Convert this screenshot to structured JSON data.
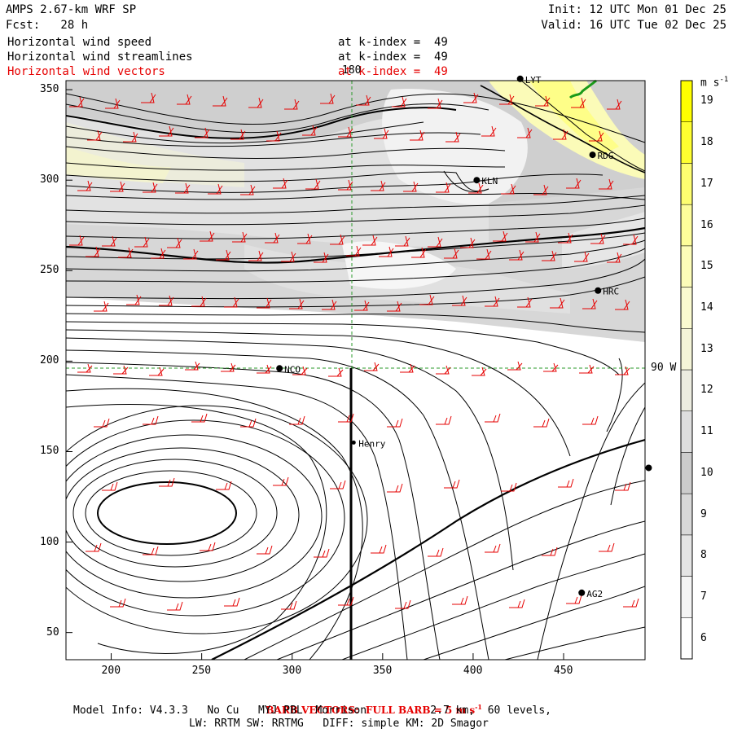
{
  "header": {
    "model": "AMPS 2.67-km WRF SP",
    "forecast": "Fcst:   28 h",
    "init": "Init: 12 UTC Mon 01 Dec 25",
    "valid": "Valid: 16 UTC Tue 02 Dec 25"
  },
  "fields": [
    {
      "name": "Horizontal wind speed",
      "level": "at k-index =  49",
      "color": "#000000"
    },
    {
      "name": "Horizontal wind streamlines",
      "level": "at k-index =  49",
      "color": "#000000"
    },
    {
      "name": "Horizontal wind vectors",
      "level": "at k-index =  49",
      "color": "#e60000"
    }
  ],
  "map": {
    "x_ticks": [
      "200",
      "250",
      "300",
      "350",
      "400",
      "450"
    ],
    "y_ticks": [
      "350",
      "300",
      "250",
      "200",
      "150",
      "100",
      "50"
    ],
    "meridian_label": "180",
    "parallel_label": "90 W",
    "stations": [
      {
        "name": "KLN",
        "x": 402,
        "y": 300
      },
      {
        "name": "RDG",
        "x": 466,
        "y": 314
      },
      {
        "name": "HRC",
        "x": 469,
        "y": 239
      },
      {
        "name": "NCO",
        "x": 293,
        "y": 196
      },
      {
        "name": "Henry",
        "x": 334,
        "y": 155
      },
      {
        "name": "AG2",
        "x": 460,
        "y": 72
      },
      {
        "name": "LYT",
        "x": 426,
        "y": 356
      },
      {
        "name": "",
        "x": 497,
        "y": 141
      }
    ]
  },
  "colorbar": {
    "unit": "m s",
    "unit_exp": "-1",
    "levels": [
      "6",
      "7",
      "8",
      "9",
      "10",
      "11",
      "12",
      "13",
      "14",
      "15",
      "16",
      "17",
      "18",
      "19"
    ],
    "colors": [
      "#ffffff",
      "#f4f4f4",
      "#e4e4e4",
      "#d8d8d8",
      "#cccccc",
      "#dedede",
      "#ecece0",
      "#f4f4d8",
      "#fafad0",
      "#fcfcb8",
      "#fdfd9a",
      "#fefe70",
      "#ffff30",
      "#ffff00"
    ]
  },
  "footer": {
    "barb_note": "BARB VECTORS:  FULL BARB = 5 m s",
    "barb_exp": "-1",
    "line1": "Model Info: V4.3.3   No Cu   MYJ PBL  Morrison          2.7 km,  60 levels,",
    "line2": "LW: RRTM SW: RRTMG   DIFF: simple KM: 2D Smagor"
  },
  "colors": {
    "vector": "#e60000",
    "grid": "#2a9a2a",
    "coast": "#1a9a1a"
  }
}
